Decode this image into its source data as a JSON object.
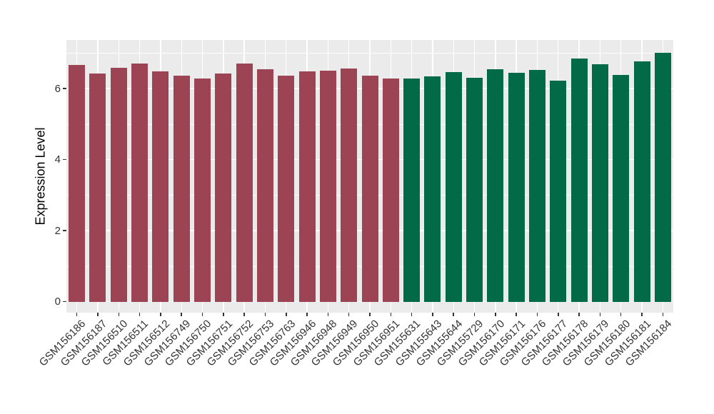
{
  "chart_data": {
    "type": "bar",
    "title": "",
    "xlabel": "",
    "ylabel": "Expression Level",
    "ylim": [
      0,
      7.37
    ],
    "yticks": [
      0,
      2,
      4,
      6
    ],
    "yticks_minor": [
      1,
      3,
      5,
      7
    ],
    "grid": true,
    "legend": false,
    "categories": [
      "GSM156186",
      "GSM156187",
      "GSM156510",
      "GSM156511",
      "GSM156512",
      "GSM156749",
      "GSM156750",
      "GSM156751",
      "GSM156752",
      "GSM156753",
      "GSM156763",
      "GSM156946",
      "GSM156948",
      "GSM156949",
      "GSM156950",
      "GSM156951",
      "GSM155631",
      "GSM155643",
      "GSM155644",
      "GSM155729",
      "GSM156170",
      "GSM156171",
      "GSM156176",
      "GSM156177",
      "GSM156178",
      "GSM156179",
      "GSM156180",
      "GSM156181",
      "GSM156184"
    ],
    "values": [
      6.66,
      6.43,
      6.58,
      6.71,
      6.48,
      6.36,
      6.29,
      6.43,
      6.71,
      6.54,
      6.36,
      6.48,
      6.5,
      6.57,
      6.37,
      6.29,
      6.29,
      6.35,
      6.47,
      6.31,
      6.55,
      6.45,
      6.53,
      6.23,
      6.84,
      6.68,
      6.39,
      6.77,
      7.01
    ],
    "groups": [
      "group1",
      "group1",
      "group1",
      "group1",
      "group1",
      "group1",
      "group1",
      "group1",
      "group1",
      "group1",
      "group1",
      "group1",
      "group1",
      "group1",
      "group1",
      "group1",
      "group2",
      "group2",
      "group2",
      "group2",
      "group2",
      "group2",
      "group2",
      "group2",
      "group2",
      "group2",
      "group2",
      "group2",
      "group2"
    ],
    "group_colors": {
      "group1": "#9C4453",
      "group2": "#026A47"
    }
  },
  "style": {
    "panel_background": "#EBEBEB",
    "grid_color": "#FFFFFF",
    "tick_label_color": "#333333",
    "axis_title_color": "#000000",
    "figure_background": "#FFFFFF"
  }
}
